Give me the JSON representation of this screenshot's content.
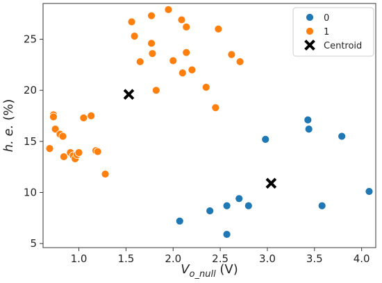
{
  "chart_data": {
    "type": "scatter",
    "xlabel": "V",
    "xlabel_sub": "o_null",
    "xlabel_unit": " (V)",
    "ylabel": "h. e.",
    "ylabel_unit": "  (%)",
    "xlim": [
      0.62,
      4.15
    ],
    "ylim": [
      4.6,
      28.5
    ],
    "xticks": [
      1.0,
      1.5,
      2.0,
      2.5,
      3.0,
      3.5,
      4.0
    ],
    "xtick_labels": [
      "1.0",
      "1.5",
      "2.0",
      "2.5",
      "3.0",
      "3.5",
      "4.0"
    ],
    "yticks": [
      5,
      10,
      15,
      20,
      25
    ],
    "ytick_labels": [
      "5",
      "10",
      "15",
      "20",
      "25"
    ],
    "grid": false,
    "legend_position": "top-right",
    "series": [
      {
        "name": "0",
        "color": "#1f77b4",
        "marker": "circle",
        "points": [
          [
            2.07,
            7.2
          ],
          [
            2.39,
            8.2
          ],
          [
            2.57,
            8.7
          ],
          [
            2.57,
            5.9
          ],
          [
            2.7,
            9.4
          ],
          [
            2.8,
            8.7
          ],
          [
            2.98,
            15.2
          ],
          [
            3.43,
            17.1
          ],
          [
            3.44,
            16.2
          ],
          [
            3.58,
            8.7
          ],
          [
            3.79,
            15.5
          ],
          [
            4.08,
            10.1
          ]
        ]
      },
      {
        "name": "1",
        "color": "#ff7f0e",
        "marker": "circle",
        "points": [
          [
            0.69,
            14.3
          ],
          [
            0.73,
            17.6
          ],
          [
            0.73,
            17.4
          ],
          [
            0.75,
            16.2
          ],
          [
            0.8,
            15.7
          ],
          [
            0.83,
            15.5
          ],
          [
            0.84,
            13.5
          ],
          [
            0.91,
            13.9
          ],
          [
            0.94,
            13.6
          ],
          [
            0.96,
            13.3
          ],
          [
            0.98,
            13.7
          ],
          [
            1.0,
            13.9
          ],
          [
            1.05,
            17.3
          ],
          [
            1.13,
            17.5
          ],
          [
            1.18,
            14.1
          ],
          [
            1.2,
            14.0
          ],
          [
            1.28,
            11.8
          ],
          [
            1.56,
            26.7
          ],
          [
            1.59,
            25.3
          ],
          [
            1.65,
            22.8
          ],
          [
            1.77,
            24.6
          ],
          [
            1.77,
            27.3
          ],
          [
            1.78,
            23.6
          ],
          [
            1.82,
            20.0
          ],
          [
            1.95,
            27.9
          ],
          [
            2.0,
            22.9
          ],
          [
            2.09,
            26.9
          ],
          [
            2.1,
            21.7
          ],
          [
            2.14,
            26.2
          ],
          [
            2.14,
            23.7
          ],
          [
            2.2,
            22.0
          ],
          [
            2.35,
            20.3
          ],
          [
            2.45,
            18.3
          ],
          [
            2.48,
            26.0
          ],
          [
            2.62,
            23.5
          ],
          [
            2.71,
            22.8
          ]
        ]
      }
    ],
    "centroids": {
      "name": "Centroid",
      "color": "#000000",
      "marker": "X",
      "points": [
        [
          1.53,
          19.6
        ],
        [
          3.04,
          10.9
        ]
      ]
    }
  }
}
